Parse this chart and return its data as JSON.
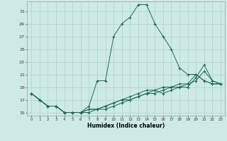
{
  "xlabel": "Humidex (Indice chaleur)",
  "bg_color": "#ceeae6",
  "grid_color": "#aed0cc",
  "line_color": "#1a6b5a",
  "series": [
    {
      "x": [
        0,
        1,
        2,
        3,
        4,
        5,
        6,
        7,
        8,
        9,
        10,
        11,
        12,
        13,
        14,
        15,
        16,
        17,
        18,
        19,
        20,
        21,
        22,
        23
      ],
      "y": [
        18,
        17,
        16,
        16,
        15,
        15,
        15,
        16,
        20,
        20,
        27,
        29,
        30,
        32,
        32,
        29,
        27,
        25,
        22,
        21,
        21,
        20,
        19.5,
        19.5
      ]
    },
    {
      "x": [
        0,
        1,
        2,
        3,
        4,
        5,
        6,
        7,
        8,
        9,
        10,
        11,
        12,
        13,
        14,
        15,
        16,
        17,
        18,
        19,
        20,
        21,
        22,
        23
      ],
      "y": [
        18,
        17,
        16,
        16,
        15,
        15,
        15,
        15.5,
        15.5,
        15.5,
        16,
        16.5,
        17,
        17.5,
        18,
        18,
        18.5,
        19,
        19,
        19.5,
        21,
        20,
        19.5,
        19.5
      ]
    },
    {
      "x": [
        0,
        1,
        2,
        3,
        4,
        5,
        6,
        7,
        8,
        9,
        10,
        11,
        12,
        13,
        14,
        15,
        16,
        17,
        18,
        19,
        20,
        21,
        22,
        23
      ],
      "y": [
        18,
        17,
        16,
        16,
        15,
        15,
        15,
        15.5,
        15.5,
        16,
        16.5,
        17,
        17.5,
        18,
        18.5,
        18.5,
        19,
        19,
        19.5,
        19.5,
        20,
        21.5,
        20,
        19.5
      ]
    },
    {
      "x": [
        0,
        1,
        2,
        3,
        4,
        5,
        6,
        7,
        8,
        9,
        10,
        11,
        12,
        13,
        14,
        15,
        16,
        17,
        18,
        19,
        20,
        21,
        22,
        23
      ],
      "y": [
        18,
        17,
        16,
        16,
        15,
        15,
        15,
        15,
        15.5,
        16,
        16.5,
        17,
        17,
        17.5,
        18,
        18.5,
        18,
        18.5,
        19,
        19,
        20.5,
        22.5,
        20,
        19.5
      ]
    }
  ],
  "xlim": [
    -0.5,
    23.5
  ],
  "ylim": [
    14.5,
    32.5
  ],
  "yticks": [
    15,
    17,
    19,
    21,
    23,
    25,
    27,
    29,
    31
  ],
  "xticks": [
    0,
    1,
    2,
    3,
    4,
    5,
    6,
    7,
    8,
    9,
    10,
    11,
    12,
    13,
    14,
    15,
    16,
    17,
    18,
    19,
    20,
    21,
    22,
    23
  ]
}
